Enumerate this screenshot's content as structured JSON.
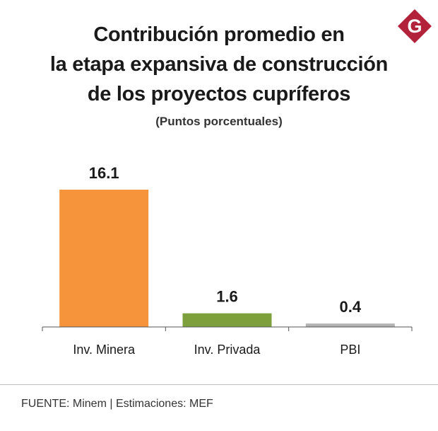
{
  "colors": {
    "minera": "#f5943b",
    "privada": "#7ea03c",
    "pbi": "#b3b3b3",
    "axis": "#555555",
    "logo": "#b2223a"
  },
  "logo": {
    "letter": "G"
  },
  "chart_data": {
    "type": "bar",
    "title_lines": [
      "Contribución promedio en",
      "la etapa expansiva de construcción",
      "de los proyectos cupríferos"
    ],
    "subtitle": "(Puntos porcentuales)",
    "categories": [
      "Inv. Minera",
      "Inv. Privada",
      "PBI"
    ],
    "values": [
      16.1,
      1.6,
      0.4
    ],
    "value_labels": [
      "16.1",
      "1.6",
      "0.4"
    ],
    "ylim": [
      0,
      16.1
    ],
    "grid": false,
    "xlabel": "",
    "ylabel": ""
  },
  "footer": {
    "source": "FUENTE: Minem | Estimaciones: MEF"
  }
}
